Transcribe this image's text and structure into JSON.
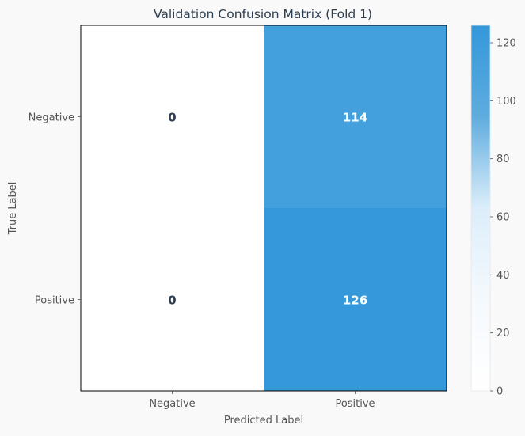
{
  "chart_data": {
    "type": "heatmap",
    "title": "Validation Confusion Matrix (Fold 1)",
    "xlabel": "Predicted Label",
    "ylabel": "True Label",
    "x_categories": [
      "Negative",
      "Positive"
    ],
    "y_categories": [
      "Negative",
      "Positive"
    ],
    "values": [
      [
        0,
        114
      ],
      [
        0,
        126
      ]
    ],
    "cell_labels": [
      [
        "0",
        "114"
      ],
      [
        "0",
        "126"
      ]
    ],
    "colorbar": {
      "range": [
        0,
        126
      ],
      "ticks": [
        0,
        20,
        40,
        60,
        80,
        100,
        120
      ],
      "tick_labels": [
        "0",
        "20",
        "40",
        "60",
        "80",
        "100",
        "120"
      ],
      "colormap": [
        "#ffffff",
        "#f5f9fd",
        "#dceefa",
        "#5eacdf",
        "#3498db"
      ]
    },
    "colors": {
      "title": "#2c3e50",
      "axis_text": "#555555",
      "annotation_dark": "#2c3e50",
      "annotation_light": "#ffffff",
      "frame": "#000000"
    }
  }
}
